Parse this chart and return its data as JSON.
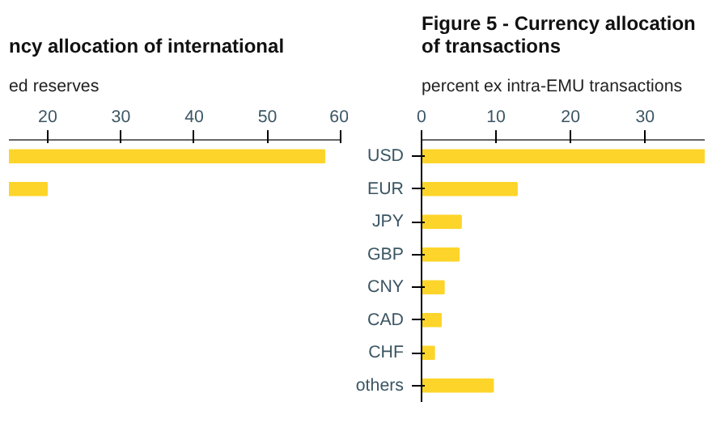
{
  "chart_data": [
    {
      "type": "bar",
      "orientation": "horizontal",
      "title": "ncy allocation of international",
      "subtitle": "ed reserves",
      "categories": [
        null,
        null,
        null,
        null,
        null,
        null,
        null,
        null
      ],
      "values": [
        57.8,
        19.9,
        null,
        null,
        null,
        null,
        null,
        null
      ],
      "color": "#fdd52a",
      "xlim": [
        14.7,
        60
      ],
      "xticks": [
        20,
        30,
        40,
        50,
        60
      ],
      "tick_labels": "x",
      "grid": false
    },
    {
      "type": "bar",
      "orientation": "horizontal",
      "title": "Figure 5 - Currency allocation of transactions",
      "subtitle": "percent ex intra-EMU transactions",
      "categories": [
        "USD",
        "EUR",
        "JPY",
        "GBP",
        "CNY",
        "CAD",
        "CHF",
        "others"
      ],
      "values": [
        38,
        12.8,
        5.3,
        5.0,
        3.0,
        2.6,
        1.7,
        9.6
      ],
      "color": "#fdd52a",
      "xlim": [
        0,
        38
      ],
      "xticks": [
        0,
        10,
        20,
        30
      ],
      "grid": false
    }
  ]
}
